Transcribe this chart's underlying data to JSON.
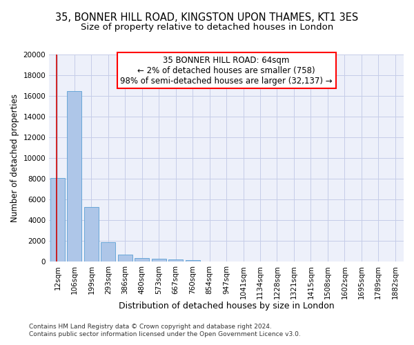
{
  "title_line1": "35, BONNER HILL ROAD, KINGSTON UPON THAMES, KT1 3ES",
  "title_line2": "Size of property relative to detached houses in London",
  "xlabel": "Distribution of detached houses by size in London",
  "ylabel": "Number of detached properties",
  "bar_color": "#aec6e8",
  "bar_edge_color": "#5a9fd4",
  "background_color": "#edf0fa",
  "grid_color": "#c5cce8",
  "vline_color": "#cc0000",
  "categories": [
    "12sqm",
    "106sqm",
    "199sqm",
    "293sqm",
    "386sqm",
    "480sqm",
    "573sqm",
    "667sqm",
    "760sqm",
    "854sqm",
    "947sqm",
    "1041sqm",
    "1134sqm",
    "1228sqm",
    "1321sqm",
    "1415sqm",
    "1508sqm",
    "1602sqm",
    "1695sqm",
    "1789sqm",
    "1882sqm"
  ],
  "values": [
    8100,
    16500,
    5300,
    1850,
    700,
    370,
    270,
    200,
    170,
    0,
    0,
    0,
    0,
    0,
    0,
    0,
    0,
    0,
    0,
    0,
    0
  ],
  "ylim": [
    0,
    20000
  ],
  "yticks": [
    0,
    2000,
    4000,
    6000,
    8000,
    10000,
    12000,
    14000,
    16000,
    18000,
    20000
  ],
  "annotation_line1": "35 BONNER HILL ROAD: 64sqm",
  "annotation_line2": "← 2% of detached houses are smaller (758)",
  "annotation_line3": "98% of semi-detached houses are larger (32,137) →",
  "footer_line1": "Contains HM Land Registry data © Crown copyright and database right 2024.",
  "footer_line2": "Contains public sector information licensed under the Open Government Licence v3.0.",
  "title_fontsize": 10.5,
  "subtitle_fontsize": 9.5,
  "tick_fontsize": 7.5,
  "ylabel_fontsize": 8.5,
  "xlabel_fontsize": 9,
  "annotation_fontsize": 8.5,
  "footer_fontsize": 6.5
}
